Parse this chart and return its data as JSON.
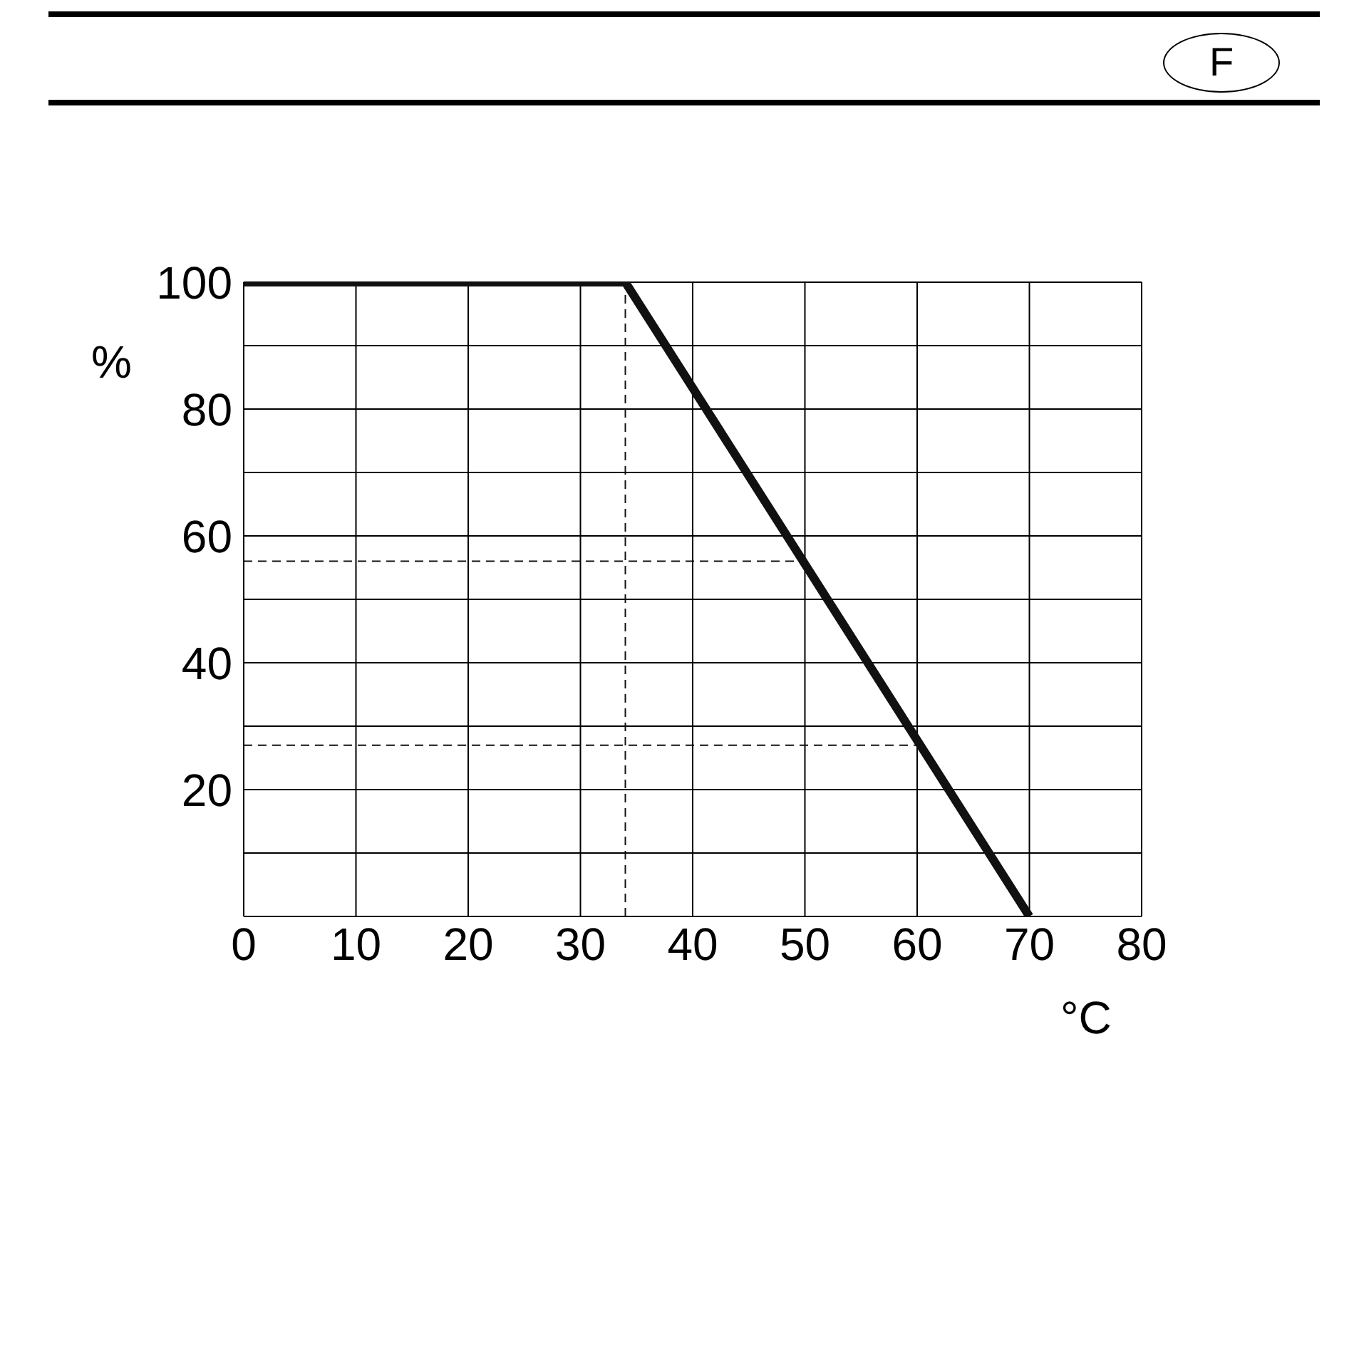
{
  "chart_data": {
    "type": "line",
    "xlabel": "°C",
    "ylabel": "%",
    "annotations": [
      "F"
    ],
    "x": [
      0,
      34,
      70
    ],
    "series": [
      {
        "color": "#111111",
        "values": [
          100,
          100,
          0
        ]
      }
    ],
    "xlim": [
      0,
      80
    ],
    "xticks": [
      0,
      10,
      20,
      30,
      40,
      50,
      60,
      70,
      80
    ],
    "ylim": [
      0,
      100
    ],
    "yticks": [
      {
        "value": 0,
        "label": null
      },
      {
        "value": 10,
        "label": null
      },
      20,
      {
        "value": 30,
        "label": null
      },
      40,
      {
        "value": 50,
        "label": null
      },
      60,
      {
        "value": 70,
        "label": null
      },
      80,
      {
        "value": 90,
        "label": null
      },
      100
    ],
    "grid": true,
    "marker": "none",
    "line_style": "solid",
    "legend": false,
    "ref_lines": [
      {
        "axis": "x",
        "value": 34,
        "line_style": "dashed",
        "color": "#111111"
      },
      {
        "axis": "y",
        "value": 56,
        "line_style": "dashed",
        "color": "#111111"
      },
      {
        "axis": "y",
        "value": 27,
        "line_style": "dashed",
        "color": "#111111"
      }
    ]
  }
}
